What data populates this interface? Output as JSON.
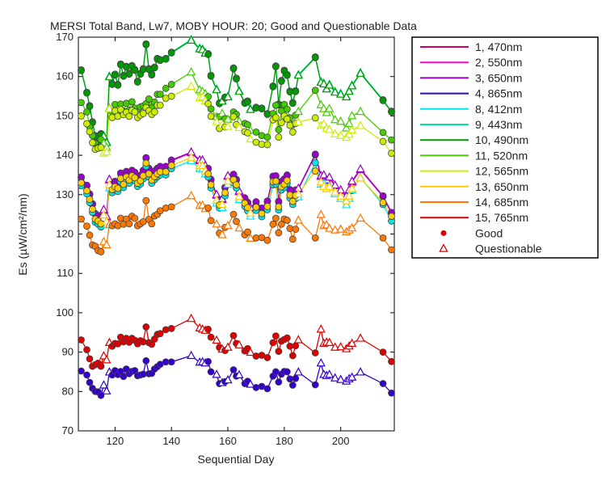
{
  "chart_data": {
    "type": "line",
    "title": "MERSI Total Band,  Lw7, MOBY HOUR: 20;  Good and Questionable Data",
    "xlabel": "Sequential Day",
    "ylabel": "Es (µW/cm²/nm)",
    "xlim": [
      107,
      219
    ],
    "ylim": [
      70,
      170
    ],
    "xticks": [
      120,
      140,
      160,
      180,
      200
    ],
    "yticks": [
      70,
      80,
      90,
      100,
      110,
      120,
      130,
      140,
      150,
      160,
      170
    ],
    "legend_position": "outside-right",
    "days": [
      108,
      110,
      111,
      112,
      113,
      114,
      115,
      116,
      117,
      118,
      119,
      120,
      121,
      122,
      123,
      124,
      125,
      126,
      127,
      128,
      129,
      130,
      131,
      132,
      133,
      134,
      135,
      136,
      138,
      140,
      147,
      150,
      151,
      152,
      153,
      154,
      156,
      157,
      158,
      159,
      160,
      162,
      163,
      164,
      166,
      167,
      168,
      170,
      172,
      174,
      176,
      177,
      178,
      179,
      180,
      181,
      182,
      183,
      184,
      185,
      191,
      193,
      194,
      195,
      196,
      198,
      200,
      202,
      203,
      204,
      207,
      215,
      218
    ],
    "good_days": [
      108,
      110,
      111,
      112,
      113,
      114,
      115,
      119,
      120,
      121,
      122,
      123,
      124,
      125,
      126,
      127,
      128,
      129,
      130,
      131,
      132,
      133,
      134,
      135,
      136,
      138,
      140,
      153,
      154,
      157,
      159,
      162,
      163,
      166,
      167,
      170,
      172,
      174,
      176,
      177,
      178,
      179,
      180,
      181,
      182,
      183,
      184,
      191,
      215,
      218
    ],
    "questionable_days": [
      116,
      117,
      118,
      147,
      150,
      151,
      152,
      156,
      158,
      160,
      164,
      168,
      185,
      193,
      194,
      195,
      196,
      198,
      200,
      202,
      203,
      204,
      207
    ],
    "series": [
      {
        "name": "1, 470nm",
        "color": "#cc0066",
        "values": [
          134.3,
          132.2,
          130.0,
          127.5,
          125.0,
          124.5,
          123.8,
          126.0,
          124.3,
          133.7,
          132.5,
          133.2,
          132.8,
          135.3,
          133.8,
          135.7,
          134.9,
          136.0,
          135.5,
          134.1,
          134.7,
          136.0,
          139.2,
          136.5,
          134.9,
          135.8,
          136.5,
          137.0,
          137.0,
          138.6,
          140.6,
          138.6,
          138.6,
          137.2,
          136.5,
          133.7,
          129.8,
          128.6,
          128.7,
          131.7,
          134.6,
          135.0,
          133.7,
          130.7,
          129.0,
          127.9,
          126.5,
          128.0,
          126.4,
          128.2,
          134.5,
          134.6,
          128.1,
          133.2,
          133.8,
          134.8,
          131.1,
          129.5,
          131.0,
          131.4,
          140.1,
          134.6,
          134.8,
          133.5,
          134.2,
          132.2,
          131.0,
          129.4,
          131.0,
          133.2,
          136.3,
          129.5,
          125.3
        ]
      },
      {
        "name": "2, 550nm",
        "color": "#ff00cc",
        "values": [
          134.4,
          132.3,
          130.1,
          127.6,
          125.1,
          124.6,
          123.9,
          126.1,
          124.4,
          133.8,
          132.6,
          133.3,
          132.9,
          135.4,
          133.9,
          135.8,
          135.0,
          136.1,
          135.6,
          134.2,
          134.8,
          136.1,
          139.3,
          136.6,
          135.0,
          135.9,
          136.6,
          137.1,
          137.1,
          138.7,
          140.7,
          138.7,
          138.7,
          137.3,
          136.6,
          133.8,
          129.9,
          128.7,
          128.8,
          131.8,
          134.7,
          135.1,
          133.8,
          130.8,
          129.1,
          128.0,
          126.6,
          128.1,
          126.5,
          128.3,
          134.6,
          134.7,
          128.2,
          133.3,
          133.9,
          134.9,
          131.2,
          129.6,
          131.1,
          131.5,
          140.2,
          134.7,
          134.9,
          133.6,
          134.3,
          132.3,
          131.1,
          129.5,
          131.1,
          133.3,
          136.4,
          129.6,
          125.4
        ]
      },
      {
        "name": "3, 650nm",
        "color": "#9900cc",
        "values": [
          134.5,
          132.4,
          130.2,
          127.7,
          125.2,
          124.7,
          124.0,
          126.2,
          124.5,
          133.9,
          132.7,
          133.4,
          133.0,
          135.5,
          134.0,
          135.9,
          135.1,
          136.2,
          135.7,
          134.3,
          134.9,
          136.2,
          139.4,
          136.7,
          135.1,
          136.0,
          136.7,
          137.2,
          137.2,
          138.8,
          140.8,
          138.8,
          138.8,
          137.4,
          136.7,
          133.9,
          130.0,
          128.8,
          128.9,
          131.9,
          134.8,
          135.2,
          133.9,
          130.9,
          129.2,
          128.1,
          126.7,
          128.2,
          126.6,
          128.4,
          134.7,
          134.8,
          128.3,
          133.4,
          134.0,
          135.0,
          131.3,
          129.7,
          131.2,
          131.6,
          140.3,
          134.8,
          135.0,
          133.7,
          134.4,
          132.4,
          131.2,
          129.6,
          131.2,
          133.4,
          136.5,
          129.7,
          125.5
        ]
      },
      {
        "name": "4, 865nm",
        "color": "#3300cc",
        "values": [
          85.2,
          84.2,
          82.3,
          80.8,
          80.0,
          79.9,
          79.0,
          81.6,
          80.1,
          84.9,
          84.2,
          85.3,
          84.3,
          85.1,
          83.8,
          85.7,
          84.5,
          85.1,
          85.3,
          84.0,
          84.2,
          84.4,
          87.8,
          84.5,
          84.6,
          85.7,
          86.3,
          86.9,
          87.5,
          87.5,
          89.1,
          87.4,
          87.5,
          87.2,
          87.6,
          85.0,
          84.3,
          82.0,
          82.2,
          82.5,
          82.9,
          85.5,
          83.9,
          84.2,
          82.0,
          82.6,
          81.8,
          81.0,
          81.3,
          80.7,
          83.9,
          85.0,
          82.4,
          84.4,
          85.1,
          85.0,
          83.2,
          81.6,
          83.3,
          84.9,
          81.7,
          87.2,
          84.3,
          84.0,
          84.3,
          83.4,
          83.0,
          82.6,
          83.2,
          83.6,
          84.9,
          82.0,
          79.6
        ]
      },
      {
        "name": "8, 412nm",
        "color": "#00e6e6",
        "values": [
          132.3,
          130.2,
          128.0,
          125.5,
          123.0,
          122.5,
          121.8,
          124.0,
          122.3,
          131.7,
          130.5,
          131.2,
          130.8,
          133.3,
          131.8,
          133.7,
          132.9,
          134.0,
          133.5,
          132.1,
          132.7,
          134.0,
          137.2,
          134.5,
          132.9,
          133.8,
          134.5,
          135.0,
          135.0,
          136.6,
          138.6,
          136.6,
          136.6,
          135.2,
          134.5,
          131.7,
          127.8,
          126.6,
          126.7,
          129.7,
          132.6,
          133.0,
          131.7,
          128.7,
          127.0,
          125.9,
          124.5,
          126.0,
          124.4,
          126.2,
          132.5,
          132.6,
          126.1,
          131.2,
          131.8,
          132.8,
          129.1,
          127.5,
          129.0,
          129.4,
          138.1,
          132.6,
          132.8,
          131.5,
          132.2,
          130.2,
          129.0,
          127.4,
          129.0,
          131.2,
          134.3,
          127.5,
          123.3
        ]
      },
      {
        "name": "9, 443nm",
        "color": "#00e6a0",
        "values": [
          161.7,
          156.0,
          152.6,
          148.5,
          145.0,
          143.4,
          145.5,
          145.0,
          143.4,
          160.1,
          158.2,
          160.6,
          158.0,
          163.2,
          160.3,
          162.6,
          160.8,
          162.8,
          161.8,
          158.8,
          160.8,
          162.0,
          168.3,
          162.0,
          160.6,
          162.4,
          164.6,
          164.3,
          164.6,
          166.2,
          169.4,
          167.2,
          167.0,
          166.1,
          165.8,
          160.3,
          156.8,
          153.3,
          153.9,
          154.8,
          155.0,
          162.2,
          159.6,
          156.4,
          153.4,
          153.8,
          151.8,
          152.2,
          152.0,
          150.6,
          157.6,
          162.7,
          153.0,
          159.0,
          161.6,
          160.5,
          156.3,
          153.4,
          156.4,
          160.5,
          165.0,
          158.7,
          158.3,
          157.0,
          158.0,
          156.2,
          155.7,
          155.0,
          156.4,
          157.8,
          161.0,
          154.1,
          151.2
        ]
      },
      {
        "name": "10, 490nm",
        "color": "#009900",
        "values": [
          161.5,
          155.8,
          152.4,
          148.3,
          144.8,
          143.2,
          145.3,
          144.8,
          143.2,
          159.9,
          158.0,
          160.4,
          157.8,
          163.0,
          160.1,
          162.4,
          160.6,
          162.6,
          161.6,
          158.6,
          160.6,
          161.8,
          168.1,
          161.8,
          160.4,
          162.2,
          164.4,
          164.1,
          164.4,
          166.0,
          169.2,
          167.0,
          166.8,
          165.9,
          165.6,
          160.1,
          156.6,
          153.1,
          153.7,
          154.6,
          154.8,
          162.0,
          159.4,
          156.2,
          153.2,
          153.6,
          151.6,
          152.0,
          151.8,
          150.4,
          157.4,
          162.5,
          152.8,
          158.8,
          161.4,
          160.3,
          156.1,
          153.2,
          156.2,
          160.3,
          164.8,
          158.5,
          158.1,
          156.8,
          157.8,
          156.0,
          155.5,
          154.8,
          156.2,
          157.6,
          160.8,
          153.9,
          151.0
        ]
      },
      {
        "name": "11, 520nm",
        "color": "#44cc00",
        "values": [
          153.4,
          151.0,
          147.2,
          145.0,
          143.0,
          142.0,
          144.0,
          143.0,
          142.0,
          152.0,
          151.1,
          152.9,
          151.1,
          153.0,
          151.2,
          153.2,
          151.5,
          153.6,
          152.0,
          151.0,
          152.3,
          152.5,
          153.1,
          154.3,
          152.1,
          153.5,
          155.5,
          155.5,
          157.0,
          158.0,
          161.1,
          156.6,
          156.2,
          155.6,
          154.9,
          151.8,
          149.8,
          149.8,
          150.6,
          149.3,
          149.1,
          151.0,
          150.4,
          148.6,
          148.1,
          147.8,
          146.3,
          145.9,
          145.0,
          144.6,
          150.6,
          152.7,
          146.5,
          151.3,
          152.9,
          151.7,
          149.5,
          147.8,
          150.2,
          151.1,
          156.5,
          152.8,
          151.8,
          150.8,
          151.8,
          149.0,
          148.6,
          146.9,
          148.0,
          150.0,
          151.1,
          145.8,
          143.9
        ]
      },
      {
        "name": "12, 565nm",
        "color": "#ccee00",
        "values": [
          150.0,
          148.0,
          146.0,
          143.2,
          141.5,
          141.8,
          142.0,
          140.5,
          140.8,
          151.8,
          149.6,
          151.3,
          149.9,
          151.6,
          150.3,
          150.9,
          149.9,
          151.4,
          151.0,
          149.6,
          150.2,
          150.6,
          152.1,
          151.3,
          150.4,
          151.0,
          152.7,
          152.7,
          154.5,
          155.0,
          157.5,
          154.6,
          154.8,
          153.8,
          153.1,
          149.9,
          148.5,
          146.8,
          147.8,
          147.2,
          147.3,
          149.8,
          147.8,
          147.0,
          146.0,
          145.7,
          144.1,
          143.3,
          142.8,
          142.7,
          149.0,
          149.6,
          144.6,
          148.3,
          150.0,
          149.2,
          147.6,
          145.9,
          148.1,
          148.4,
          149.5,
          147.5,
          147.9,
          146.8,
          146.5,
          145.4,
          145.0,
          144.5,
          145.3,
          146.4,
          147.5,
          143.5,
          140.5
        ]
      },
      {
        "name": "13, 650nm",
        "color": "#ffcc00",
        "values": [
          133.0,
          131.0,
          128.8,
          126.3,
          123.8,
          123.3,
          122.6,
          124.8,
          123.1,
          132.5,
          131.3,
          132.0,
          131.6,
          134.1,
          132.6,
          134.5,
          133.7,
          134.8,
          134.3,
          132.9,
          133.5,
          134.8,
          138.0,
          135.3,
          133.7,
          134.6,
          135.3,
          135.8,
          135.8,
          137.4,
          139.4,
          137.4,
          137.4,
          136.0,
          135.3,
          132.5,
          128.6,
          127.4,
          127.5,
          130.5,
          133.4,
          133.8,
          132.5,
          129.5,
          127.8,
          126.7,
          125.3,
          126.8,
          125.2,
          127.0,
          133.3,
          133.4,
          126.9,
          132.0,
          132.6,
          133.6,
          129.9,
          128.3,
          129.8,
          130.2,
          136.0,
          133.2,
          132.0,
          131.5,
          132.0,
          130.6,
          129.6,
          128.4,
          129.6,
          131.5,
          134.2,
          128.0,
          124.5
        ]
      },
      {
        "name": "14, 685nm",
        "color": "#ff7700",
        "values": [
          123.8,
          122.0,
          119.7,
          117.2,
          116.9,
          115.8,
          115.5,
          118.0,
          117.2,
          122.4,
          122.1,
          122.6,
          122.1,
          124.0,
          122.5,
          123.8,
          122.6,
          124.5,
          124.0,
          122.1,
          122.6,
          123.1,
          128.5,
          123.7,
          122.6,
          124.6,
          125.0,
          125.9,
          126.6,
          126.9,
          129.7,
          127.2,
          127.3,
          126.4,
          126.6,
          123.4,
          122.5,
          120.2,
          119.8,
          121.7,
          122.1,
          125.0,
          123.2,
          121.5,
          119.8,
          120.5,
          118.9,
          119.0,
          119.1,
          118.4,
          122.5,
          124.0,
          120.3,
          122.5,
          123.8,
          123.5,
          121.4,
          118.7,
          121.2,
          123.5,
          119.0,
          124.9,
          122.1,
          122.3,
          121.4,
          121.0,
          121.2,
          120.5,
          121.0,
          121.5,
          124.0,
          119.0,
          116.0
        ]
      },
      {
        "name": "15, 765nm",
        "color": "#dd0000",
        "values": [
          93.1,
          90.6,
          88.3,
          86.4,
          86.8,
          87.2,
          86.4,
          89.0,
          88.0,
          92.4,
          91.5,
          92.2,
          92.1,
          93.8,
          92.6,
          93.5,
          92.5,
          93.5,
          93.0,
          92.1,
          92.9,
          92.6,
          96.4,
          92.4,
          92.0,
          93.3,
          94.5,
          94.7,
          95.7,
          96.0,
          98.5,
          96.1,
          95.8,
          95.5,
          95.8,
          93.8,
          93.0,
          91.2,
          90.7,
          90.4,
          91.2,
          94.2,
          92.2,
          91.8,
          90.3,
          90.9,
          89.9,
          89.0,
          89.2,
          88.6,
          92.4,
          94.1,
          90.2,
          92.8,
          93.2,
          93.6,
          91.5,
          89.1,
          91.6,
          93.1,
          89.8,
          95.8,
          92.2,
          92.5,
          92.4,
          91.2,
          91.3,
          90.8,
          91.5,
          92.2,
          93.5,
          90.0,
          87.6
        ]
      }
    ],
    "legend_markers": [
      {
        "label": "Good",
        "marker": "filled-circle",
        "color": "#dd0000"
      },
      {
        "label": "Questionable",
        "marker": "open-triangle",
        "color": "#dd0000"
      }
    ]
  }
}
